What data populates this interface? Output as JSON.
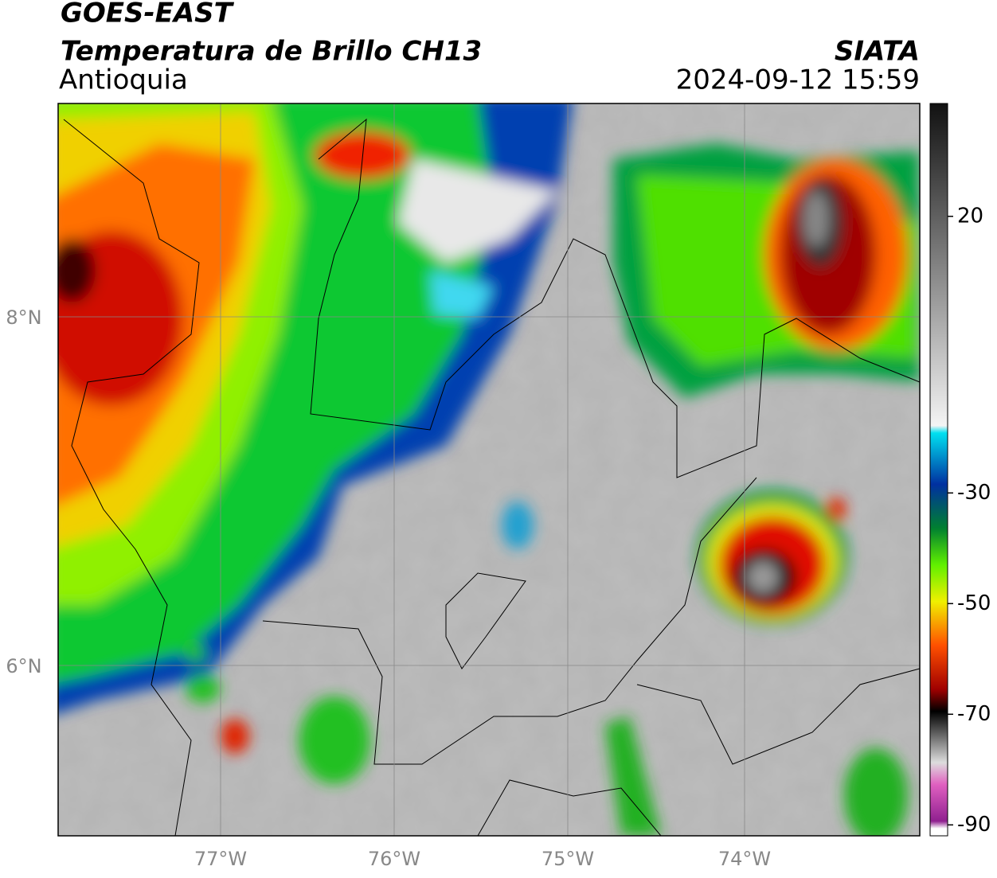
{
  "header": {
    "satellite": "GOES-EAST",
    "product": "Temperatura de Brillo CH13",
    "region": "Antioquia",
    "source": "SIATA",
    "datetime": "2024-09-12 15:59"
  },
  "map": {
    "lat_labels": [
      "8°N",
      "6°N"
    ],
    "lon_labels": [
      "77°W",
      "76°W",
      "75°W",
      "74°W"
    ]
  },
  "colorbar": {
    "ticks": [
      20,
      -30,
      -50,
      -70,
      -90
    ]
  }
}
